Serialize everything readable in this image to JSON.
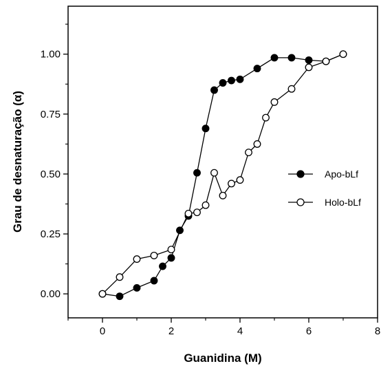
{
  "chart_data": {
    "type": "line",
    "xlabel": "Guanidina (M)",
    "ylabel": "Grau de desnaturação (α)",
    "xlim": [
      -1,
      8
    ],
    "ylim": [
      -0.1,
      1.2
    ],
    "xticks": [
      0,
      2,
      4,
      6,
      8
    ],
    "xtick_labels": [
      "0",
      "2",
      "4",
      "6",
      "8"
    ],
    "yticks": [
      0.0,
      0.25,
      0.5,
      0.75,
      1.0
    ],
    "ytick_labels": [
      "0.00",
      "0.25",
      "0.50",
      "0.75",
      "1.00"
    ],
    "grid": false,
    "legend_position": "right",
    "series": [
      {
        "name": "Apo-bLf",
        "marker": "filled-circle",
        "x": [
          0,
          0.5,
          1.0,
          1.5,
          1.75,
          2.0,
          2.25,
          2.5,
          2.75,
          3.0,
          3.25,
          3.5,
          3.75,
          4.0,
          4.5,
          5.0,
          5.5,
          6.0,
          6.5,
          7.0
        ],
        "y": [
          0.0,
          -0.01,
          0.025,
          0.055,
          0.115,
          0.15,
          0.265,
          0.325,
          0.505,
          0.69,
          0.85,
          0.88,
          0.89,
          0.895,
          0.94,
          0.985,
          0.985,
          0.975,
          0.97,
          1.0
        ]
      },
      {
        "name": "Holo-bLf",
        "marker": "open-circle",
        "x": [
          0,
          0.5,
          1.0,
          1.5,
          2.0,
          2.5,
          2.75,
          3.0,
          3.25,
          3.5,
          3.75,
          4.0,
          4.25,
          4.5,
          4.75,
          5.0,
          5.5,
          6.0,
          6.5,
          7.0
        ],
        "y": [
          0.0,
          0.07,
          0.145,
          0.16,
          0.185,
          0.335,
          0.34,
          0.37,
          0.505,
          0.41,
          0.46,
          0.475,
          0.59,
          0.625,
          0.735,
          0.8,
          0.855,
          0.945,
          0.97,
          1.0
        ]
      }
    ]
  }
}
